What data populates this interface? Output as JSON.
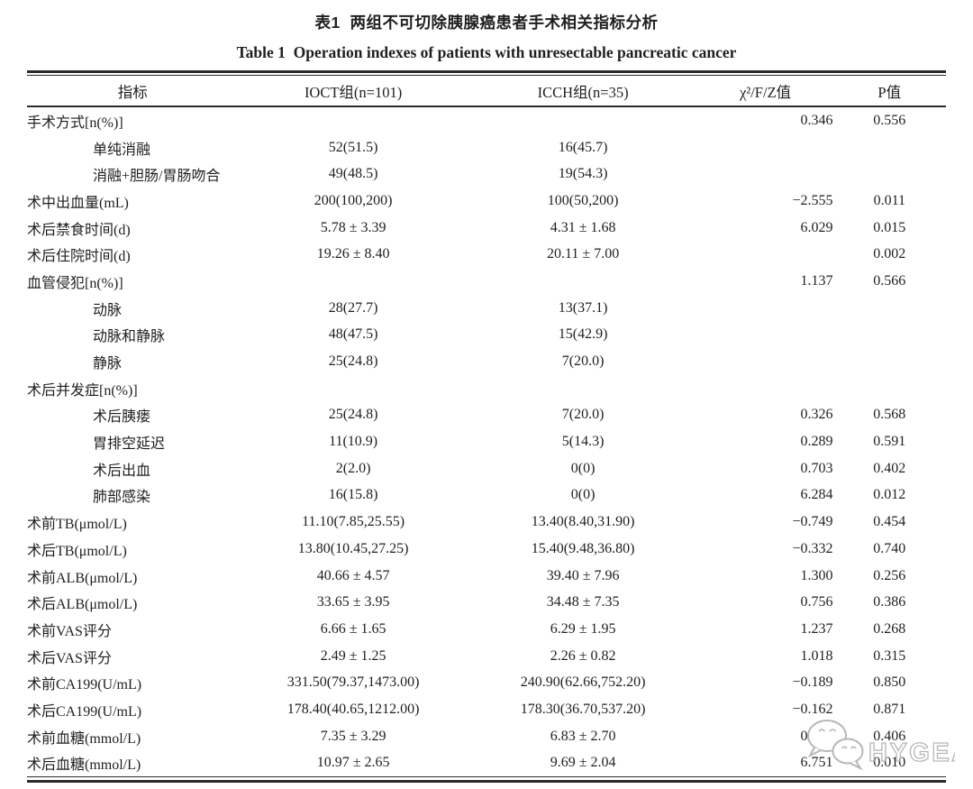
{
  "page": {
    "title_cn": "表1  两组不可切除胰腺癌患者手术相关指标分析",
    "title_en": "Table 1  Operation indexes of patients with unresectable pancreatic cancer"
  },
  "table": {
    "columns": [
      "指标",
      "IOCT组(n=101)",
      "ICCH组(n=35)",
      "χ²/F/Z值",
      "P值"
    ],
    "rows": [
      {
        "label": "手术方式[n(%)]",
        "indent": 0,
        "ioct": "",
        "icch": "",
        "chi": "0.346",
        "p": "0.556"
      },
      {
        "label": "单纯消融",
        "indent": 1,
        "ioct": "52(51.5)",
        "icch": "16(45.7)",
        "chi": "",
        "p": ""
      },
      {
        "label": "消融+胆肠/胃肠吻合",
        "indent": 1,
        "ioct": "49(48.5)",
        "icch": "19(54.3)",
        "chi": "",
        "p": ""
      },
      {
        "label": "术中出血量(mL)",
        "indent": 0,
        "ioct": "200(100,200)",
        "icch": "100(50,200)",
        "chi": "−2.555",
        "p": "0.011"
      },
      {
        "label": "术后禁食时间(d)",
        "indent": 0,
        "ioct": "5.78 ± 3.39",
        "icch": "4.31 ± 1.68",
        "chi": "6.029",
        "p": "0.015"
      },
      {
        "label": "术后住院时间(d)",
        "indent": 0,
        "ioct": "19.26 ± 8.40",
        "icch": "20.11 ± 7.00",
        "chi": "",
        "p": "0.002"
      },
      {
        "label": "血管侵犯[n(%)]",
        "indent": 0,
        "ioct": "",
        "icch": "",
        "chi": "1.137",
        "p": "0.566"
      },
      {
        "label": "动脉",
        "indent": 1,
        "ioct": "28(27.7)",
        "icch": "13(37.1)",
        "chi": "",
        "p": ""
      },
      {
        "label": "动脉和静脉",
        "indent": 1,
        "ioct": "48(47.5)",
        "icch": "15(42.9)",
        "chi": "",
        "p": ""
      },
      {
        "label": "静脉",
        "indent": 1,
        "ioct": "25(24.8)",
        "icch": "7(20.0)",
        "chi": "",
        "p": ""
      },
      {
        "label": "术后并发症[n(%)]",
        "indent": 0,
        "ioct": "",
        "icch": "",
        "chi": "",
        "p": ""
      },
      {
        "label": "术后胰瘘",
        "indent": 1,
        "ioct": "25(24.8)",
        "icch": "7(20.0)",
        "chi": "0.326",
        "p": "0.568"
      },
      {
        "label": "胃排空延迟",
        "indent": 1,
        "ioct": "11(10.9)",
        "icch": "5(14.3)",
        "chi": "0.289",
        "p": "0.591"
      },
      {
        "label": "术后出血",
        "indent": 1,
        "ioct": "2(2.0)",
        "icch": "0(0)",
        "chi": "0.703",
        "p": "0.402"
      },
      {
        "label": "肺部感染",
        "indent": 1,
        "ioct": "16(15.8)",
        "icch": "0(0)",
        "chi": "6.284",
        "p": "0.012"
      },
      {
        "label": "术前TB(μmol/L)",
        "indent": 0,
        "ioct": "11.10(7.85,25.55)",
        "icch": "13.40(8.40,31.90)",
        "chi": "−0.749",
        "p": "0.454"
      },
      {
        "label": "术后TB(μmol/L)",
        "indent": 0,
        "ioct": "13.80(10.45,27.25)",
        "icch": "15.40(9.48,36.80)",
        "chi": "−0.332",
        "p": "0.740"
      },
      {
        "label": "术前ALB(μmol/L)",
        "indent": 0,
        "ioct": "40.66 ± 4.57",
        "icch": "39.40 ± 7.96",
        "chi": "1.300",
        "p": "0.256"
      },
      {
        "label": "术后ALB(μmol/L)",
        "indent": 0,
        "ioct": "33.65 ± 3.95",
        "icch": "34.48 ± 7.35",
        "chi": "0.756",
        "p": "0.386"
      },
      {
        "label": "术前VAS评分",
        "indent": 0,
        "ioct": "6.66 ± 1.65",
        "icch": "6.29 ± 1.95",
        "chi": "1.237",
        "p": "0.268"
      },
      {
        "label": "术后VAS评分",
        "indent": 0,
        "ioct": "2.49 ± 1.25",
        "icch": "2.26 ± 0.82",
        "chi": "1.018",
        "p": "0.315"
      },
      {
        "label": "术前CA199(U/mL)",
        "indent": 0,
        "ioct": "331.50(79.37,1473.00)",
        "icch": "240.90(62.66,752.20)",
        "chi": "−0.189",
        "p": "0.850"
      },
      {
        "label": "术后CA199(U/mL)",
        "indent": 0,
        "ioct": "178.40(40.65,1212.00)",
        "icch": "178.30(36.70,537.20)",
        "chi": "−0.162",
        "p": "0.871"
      },
      {
        "label": "术前血糖(mmol/L)",
        "indent": 0,
        "ioct": "7.35 ± 3.29",
        "icch": "6.83 ± 2.70",
        "chi": "0.696",
        "p": "0.406"
      },
      {
        "label": "术后血糖(mmol/L)",
        "indent": 0,
        "ioct": "10.97 ± 2.65",
        "icch": "9.69 ± 2.04",
        "chi": "6.751",
        "p": "0.010"
      }
    ]
  },
  "watermark": {
    "label": "HYGEA",
    "icon": "wechat-icon",
    "color": "#b7b7b7"
  }
}
